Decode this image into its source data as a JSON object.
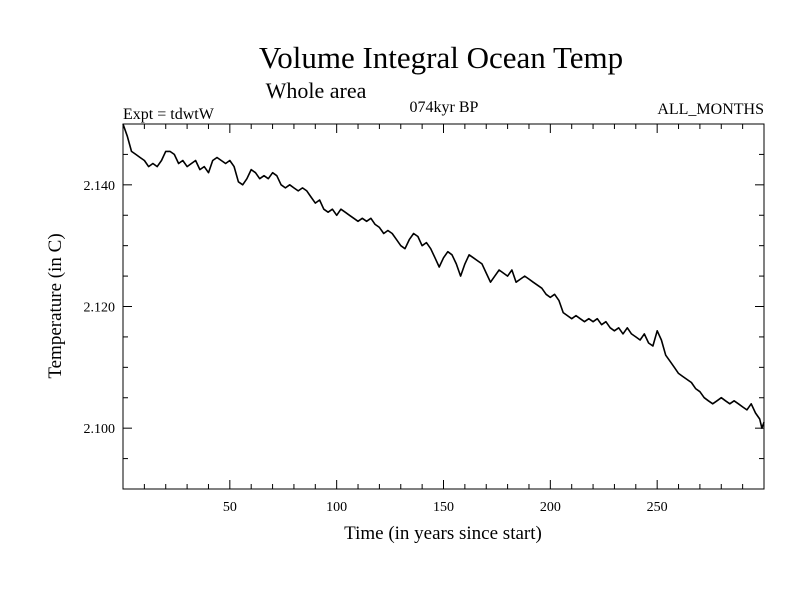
{
  "chart_data": {
    "type": "line",
    "title": "Volume Integral Ocean Temp",
    "subtitle": "Whole area",
    "experiment_label": "Expt = tdwtW",
    "period_label": "074kyr BP",
    "months_label": "ALL_MONTHS",
    "xlabel": "Time (in years since start)",
    "ylabel": "Temperature (in C)",
    "xlim": [
      0,
      300
    ],
    "ylim": [
      2.09,
      2.15
    ],
    "xticks": [
      {
        "value": 50,
        "label": "50"
      },
      {
        "value": 100,
        "label": "100"
      },
      {
        "value": 150,
        "label": "150"
      },
      {
        "value": 200,
        "label": "200"
      },
      {
        "value": 250,
        "label": "250"
      }
    ],
    "yticks": [
      {
        "value": 2.1,
        "label": "2.100"
      },
      {
        "value": 2.12,
        "label": "2.120"
      },
      {
        "value": 2.14,
        "label": "2.140"
      }
    ],
    "series": [
      {
        "name": "Volume integral ocean temperature",
        "x": [
          0,
          2,
          4,
          6,
          8,
          10,
          12,
          14,
          16,
          18,
          20,
          22,
          24,
          26,
          28,
          30,
          32,
          34,
          36,
          38,
          40,
          42,
          44,
          46,
          48,
          50,
          52,
          54,
          56,
          58,
          60,
          62,
          64,
          66,
          68,
          70,
          72,
          74,
          76,
          78,
          80,
          82,
          84,
          86,
          88,
          90,
          92,
          94,
          96,
          98,
          100,
          102,
          104,
          106,
          108,
          110,
          112,
          114,
          116,
          118,
          120,
          122,
          124,
          126,
          128,
          130,
          132,
          134,
          136,
          138,
          140,
          142,
          144,
          146,
          148,
          150,
          152,
          154,
          156,
          158,
          160,
          162,
          164,
          166,
          168,
          170,
          172,
          174,
          176,
          178,
          180,
          182,
          184,
          186,
          188,
          190,
          192,
          194,
          196,
          198,
          200,
          202,
          204,
          206,
          208,
          210,
          212,
          214,
          216,
          218,
          220,
          222,
          224,
          226,
          228,
          230,
          232,
          234,
          236,
          238,
          240,
          242,
          244,
          246,
          248,
          250,
          252,
          254,
          256,
          258,
          260,
          262,
          264,
          266,
          268,
          270,
          272,
          274,
          276,
          278,
          280,
          282,
          284,
          286,
          288,
          290,
          292,
          294,
          296,
          298,
          299,
          300
        ],
        "values": [
          2.15,
          2.148,
          2.1455,
          2.145,
          2.1445,
          2.144,
          2.143,
          2.1435,
          2.143,
          2.144,
          2.1455,
          2.1455,
          2.145,
          2.1435,
          2.144,
          2.143,
          2.1435,
          2.144,
          2.1425,
          2.143,
          2.142,
          2.144,
          2.1445,
          2.144,
          2.1435,
          2.144,
          2.143,
          2.1405,
          2.14,
          2.141,
          2.1425,
          2.142,
          2.141,
          2.1415,
          2.141,
          2.142,
          2.1415,
          2.14,
          2.1395,
          2.14,
          2.1395,
          2.139,
          2.1395,
          2.139,
          2.138,
          2.137,
          2.1375,
          2.136,
          2.1355,
          2.136,
          2.135,
          2.136,
          2.1355,
          2.135,
          2.1345,
          2.134,
          2.1345,
          2.134,
          2.1345,
          2.1335,
          2.133,
          2.132,
          2.1325,
          2.132,
          2.131,
          2.13,
          2.1295,
          2.131,
          2.132,
          2.1315,
          2.13,
          2.1305,
          2.1295,
          2.128,
          2.1265,
          2.128,
          2.129,
          2.1285,
          2.127,
          2.125,
          2.127,
          2.1285,
          2.128,
          2.1275,
          2.127,
          2.1255,
          2.124,
          2.125,
          2.126,
          2.1255,
          2.125,
          2.126,
          2.124,
          2.1245,
          2.125,
          2.1245,
          2.124,
          2.1235,
          2.123,
          2.122,
          2.1215,
          2.122,
          2.121,
          2.119,
          2.1185,
          2.118,
          2.1185,
          2.118,
          2.1175,
          2.118,
          2.1175,
          2.118,
          2.117,
          2.1175,
          2.1165,
          2.116,
          2.1165,
          2.1155,
          2.1165,
          2.1155,
          2.115,
          2.1145,
          2.1155,
          2.114,
          2.1135,
          2.116,
          2.1145,
          2.112,
          2.111,
          2.11,
          2.109,
          2.1085,
          2.108,
          2.1075,
          2.1065,
          2.106,
          2.105,
          2.1045,
          2.104,
          2.1045,
          2.105,
          2.1045,
          2.104,
          2.1045,
          2.104,
          2.1035,
          2.103,
          2.104,
          2.1025,
          2.1015,
          2.1,
          2.101
        ]
      }
    ],
    "grid": false,
    "legend": "none"
  }
}
